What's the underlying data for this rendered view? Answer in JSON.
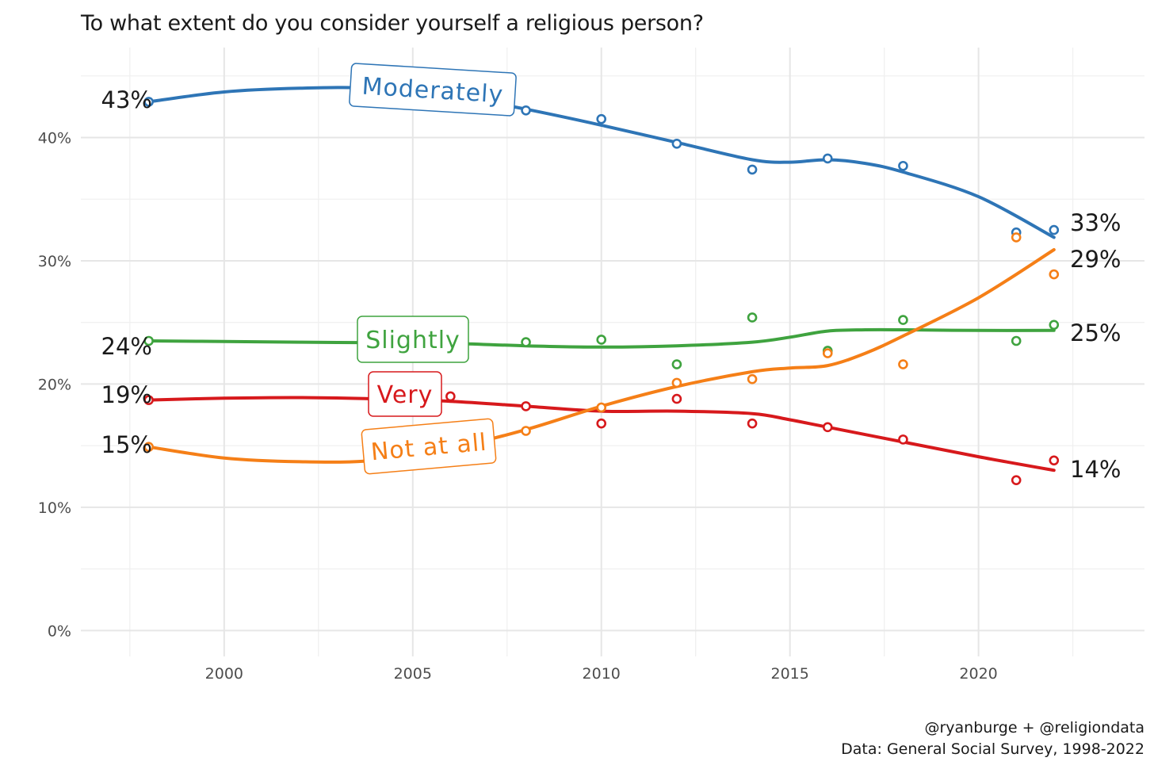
{
  "chart_data": {
    "type": "line",
    "title": "To what extent do you consider yourself a religious person?",
    "xlabel": "",
    "ylabel": "",
    "xlim": [
      1996.2,
      2024.4
    ],
    "ylim": [
      -2.1,
      47.3
    ],
    "x_ticks": [
      2000,
      2005,
      2010,
      2015,
      2020
    ],
    "y_ticks": [
      0,
      10,
      20,
      30,
      40
    ],
    "x_tick_labels": [
      "2000",
      "2005",
      "2010",
      "2015",
      "2020"
    ],
    "y_tick_labels": [
      "0%",
      "10%",
      "20%",
      "30%",
      "40%"
    ],
    "grid": true,
    "legend": "direct labels on lines",
    "colors": {
      "Moderately": "#2e75b6",
      "Slightly": "#3fa33f",
      "Very": "#d7191c",
      "Not at all": "#f57f17"
    },
    "series": [
      {
        "name": "Moderately",
        "color": "#2e75b6",
        "x": [
          1998,
          2004,
          2006,
          2008,
          2010,
          2012,
          2014,
          2016,
          2018,
          2021,
          2022
        ],
        "points": [
          42.9,
          44.0,
          43.1,
          42.2,
          41.5,
          39.5,
          37.4,
          38.3,
          37.7,
          32.3,
          32.5
        ],
        "trend_x": [
          1998,
          2000,
          2002,
          2004,
          2006,
          2008,
          2010,
          2012,
          2014,
          2015,
          2016,
          2017,
          2018,
          2020,
          2022
        ],
        "trend": [
          42.9,
          43.7,
          44.0,
          44.0,
          43.4,
          42.3,
          41.0,
          39.6,
          38.2,
          38.0,
          38.2,
          37.9,
          37.2,
          35.2,
          31.9
        ],
        "start_label": "43%",
        "end_label": "33%",
        "tag_label": "Moderately"
      },
      {
        "name": "Slightly",
        "color": "#3fa33f",
        "x": [
          1998,
          2004,
          2008,
          2010,
          2012,
          2014,
          2016,
          2018,
          2021,
          2022
        ],
        "points": [
          23.5,
          23.3,
          23.4,
          23.6,
          21.6,
          25.4,
          22.7,
          25.2,
          23.5,
          24.8
        ],
        "trend_x": [
          1998,
          2000,
          2002,
          2004,
          2006,
          2008,
          2010,
          2012,
          2014,
          2015,
          2016,
          2017,
          2018,
          2020,
          2022
        ],
        "trend": [
          23.5,
          23.45,
          23.4,
          23.35,
          23.3,
          23.1,
          23.0,
          23.1,
          23.4,
          23.8,
          24.3,
          24.4,
          24.4,
          24.35,
          24.35
        ],
        "start_label": "24%",
        "end_label": "25%",
        "tag_label": "Slightly"
      },
      {
        "name": "Very",
        "color": "#d7191c",
        "x": [
          1998,
          2004,
          2006,
          2008,
          2010,
          2012,
          2014,
          2016,
          2018,
          2021,
          2022
        ],
        "points": [
          18.7,
          18.6,
          19.0,
          18.2,
          16.8,
          18.8,
          16.8,
          16.5,
          15.5,
          12.2,
          13.8
        ],
        "trend_x": [
          1998,
          2000,
          2002,
          2004,
          2006,
          2008,
          2010,
          2012,
          2014,
          2015,
          2016,
          2018,
          2020,
          2022
        ],
        "trend": [
          18.7,
          18.85,
          18.9,
          18.8,
          18.6,
          18.2,
          17.8,
          17.8,
          17.6,
          17.1,
          16.5,
          15.3,
          14.1,
          13.0
        ],
        "start_label": "19%",
        "end_label": "14%",
        "tag_label": "Very"
      },
      {
        "name": "Not at all",
        "color": "#f57f17",
        "x": [
          1998,
          2004,
          2008,
          2010,
          2012,
          2014,
          2016,
          2018,
          2021,
          2022
        ],
        "points": [
          14.9,
          14.0,
          16.2,
          18.1,
          20.1,
          20.4,
          22.5,
          21.6,
          31.9,
          28.9
        ],
        "trend_x": [
          1998,
          2000,
          2002,
          2004,
          2006,
          2008,
          2010,
          2012,
          2014,
          2015,
          2016,
          2017,
          2018,
          2020,
          2022
        ],
        "trend": [
          14.9,
          14.0,
          13.7,
          13.8,
          14.8,
          16.3,
          18.2,
          19.8,
          21.0,
          21.3,
          21.5,
          22.5,
          23.9,
          27.0,
          30.9
        ],
        "start_label": "15%",
        "end_label": "29%",
        "tag_label": "Not at all"
      }
    ]
  },
  "caption": {
    "line1": "@ryanburge + @religiondata",
    "line2": "Data: General Social Survey, 1998-2022"
  }
}
